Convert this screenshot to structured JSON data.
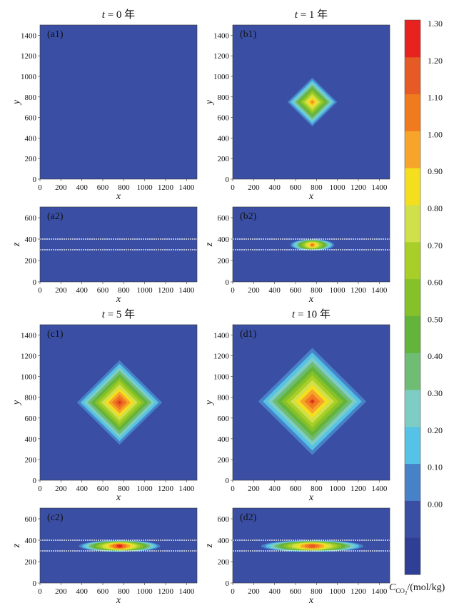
{
  "colors": {
    "background": "#3a4fa3",
    "levels": [
      "#2e3f95",
      "#3a4fa3",
      "#4782c8",
      "#56c2e6",
      "#7ecdc4",
      "#6fbd74",
      "#64b33a",
      "#86c12a",
      "#a7cf28",
      "#cfe04a",
      "#f3df1d",
      "#f6a52a",
      "#f07a1e",
      "#e55a25",
      "#e8231f"
    ]
  },
  "colorbar": {
    "tick_labels": [
      "0.00",
      "0.10",
      "0.20",
      "0.30",
      "0.40",
      "0.50",
      "0.60",
      "0.70",
      "0.80",
      "0.90",
      "1.00",
      "1.10",
      "1.20",
      "1.30"
    ],
    "label_main": "C",
    "label_sub": "CO",
    "label_sub2": "2",
    "label_unit": "/(mol/kg)"
  },
  "chart_data": [
    {
      "id": "a1",
      "type": "heatmap",
      "panel_label": "(a1)",
      "title": "t = 0 年",
      "title_var": "t",
      "title_rest": " = 0 年",
      "xlabel": "x",
      "ylabel": "y",
      "xlim": [
        0,
        1500
      ],
      "ylim": [
        0,
        1500
      ],
      "xticks": [
        0,
        200,
        400,
        600,
        800,
        1000,
        1200,
        1400
      ],
      "yticks": [
        0,
        200,
        400,
        600,
        800,
        1000,
        1200,
        1400
      ],
      "center": [
        750,
        750
      ],
      "radius": 0,
      "peak": 0
    },
    {
      "id": "a2",
      "type": "heatmap",
      "panel_label": "(a2)",
      "xlabel": "x",
      "ylabel": "z",
      "xlim": [
        0,
        1500
      ],
      "ylim": [
        0,
        700
      ],
      "xticks": [
        0,
        200,
        400,
        600,
        800,
        1000,
        1200,
        1400
      ],
      "yticks": [
        0,
        200,
        400,
        600
      ],
      "layer_z": [
        300,
        400
      ],
      "center": [
        750,
        350
      ],
      "half_width": 0,
      "peak": 0
    },
    {
      "id": "b1",
      "type": "heatmap",
      "panel_label": "(b1)",
      "title": "t = 1 年",
      "title_var": "t",
      "title_rest": " = 1 年",
      "xlabel": "x",
      "ylabel": "y",
      "xlim": [
        0,
        1500
      ],
      "ylim": [
        0,
        1500
      ],
      "xticks": [
        0,
        200,
        400,
        600,
        800,
        1000,
        1200,
        1400
      ],
      "yticks": [
        0,
        200,
        400,
        600,
        800,
        1000,
        1200,
        1400
      ],
      "center": [
        760,
        750
      ],
      "radius": 260,
      "peak": 1.1
    },
    {
      "id": "b2",
      "type": "heatmap",
      "panel_label": "(b2)",
      "xlabel": "x",
      "ylabel": "z",
      "xlim": [
        0,
        1500
      ],
      "ylim": [
        0,
        700
      ],
      "xticks": [
        0,
        200,
        400,
        600,
        800,
        1000,
        1200,
        1400
      ],
      "yticks": [
        0,
        200,
        400,
        600
      ],
      "layer_z": [
        300,
        400
      ],
      "center": [
        760,
        345
      ],
      "half_width": 230,
      "peak": 1.1
    },
    {
      "id": "c1",
      "type": "heatmap",
      "panel_label": "(c1)",
      "title": "t = 5 年",
      "title_var": "t",
      "title_rest": " = 5 年",
      "xlabel": "x",
      "ylabel": "y",
      "xlim": [
        0,
        1500
      ],
      "ylim": [
        0,
        1500
      ],
      "xticks": [
        0,
        200,
        400,
        600,
        800,
        1000,
        1200,
        1400
      ],
      "yticks": [
        0,
        200,
        400,
        600,
        800,
        1000,
        1200,
        1400
      ],
      "center": [
        760,
        750
      ],
      "radius": 440,
      "peak": 1.3
    },
    {
      "id": "c2",
      "type": "heatmap",
      "panel_label": "(c2)",
      "xlabel": "x",
      "ylabel": "z",
      "xlim": [
        0,
        1500
      ],
      "ylim": [
        0,
        700
      ],
      "xticks": [
        0,
        200,
        400,
        600,
        800,
        1000,
        1200,
        1400
      ],
      "yticks": [
        0,
        200,
        400,
        600
      ],
      "layer_z": [
        300,
        400
      ],
      "center": [
        760,
        345
      ],
      "half_width": 420,
      "peak": 1.3
    },
    {
      "id": "d1",
      "type": "heatmap",
      "panel_label": "(d1)",
      "title": "t = 10 年",
      "title_var": "t",
      "title_rest": " = 10 年",
      "xlabel": "x",
      "ylabel": "y",
      "xlim": [
        0,
        1500
      ],
      "ylim": [
        0,
        1500
      ],
      "xticks": [
        0,
        200,
        400,
        600,
        800,
        1000,
        1200,
        1400
      ],
      "yticks": [
        0,
        200,
        400,
        600,
        800,
        1000,
        1200,
        1400
      ],
      "center": [
        760,
        760
      ],
      "radius": 560,
      "peak": 1.25
    },
    {
      "id": "d2",
      "type": "heatmap",
      "panel_label": "(d2)",
      "xlabel": "x",
      "ylabel": "z",
      "xlim": [
        0,
        1500
      ],
      "ylim": [
        0,
        700
      ],
      "xticks": [
        0,
        200,
        400,
        600,
        800,
        1000,
        1200,
        1400
      ],
      "yticks": [
        0,
        200,
        400,
        600
      ],
      "layer_z": [
        300,
        400
      ],
      "center": [
        760,
        345
      ],
      "half_width": 530,
      "peak": 1.25
    }
  ]
}
